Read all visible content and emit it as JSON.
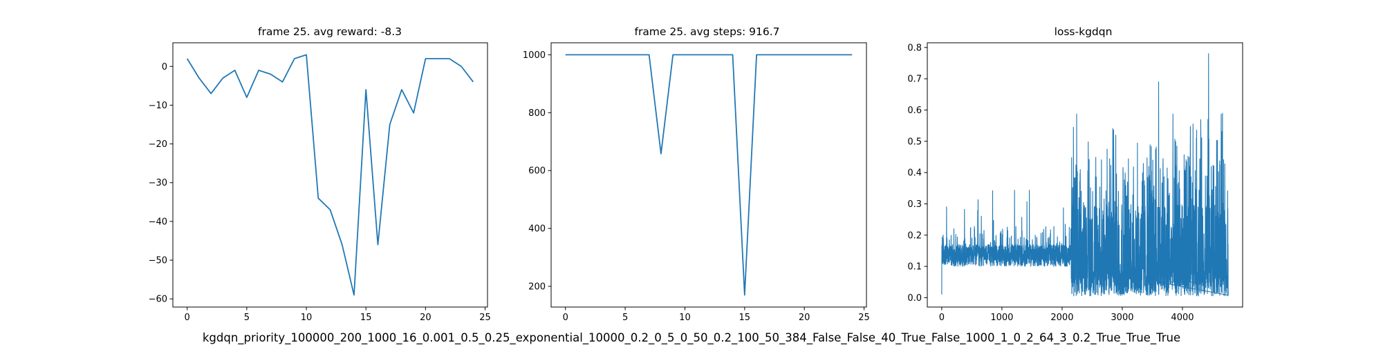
{
  "figure": {
    "caption": "kgdqn_priority_100000_200_1000_16_0.001_0.5_0.25_exponential_10000_0.2_0_5_0_50_0.2_100_50_384_False_False_40_True_False_1000_1_0_2_64_3_0.2_True_True_True"
  },
  "style": {
    "line_color": "#1f77b4",
    "frame_color": "#000000",
    "background": "#ffffff"
  },
  "chart_data": [
    {
      "type": "line",
      "title": "frame 25. avg reward: -8.3",
      "xlabel": "",
      "ylabel": "",
      "xlim": [
        -1.2,
        25.2
      ],
      "ylim": [
        -62.1,
        6.1
      ],
      "xticks": [
        0,
        5,
        10,
        15,
        20,
        25
      ],
      "yticks": [
        0,
        -10,
        -20,
        -30,
        -40,
        -50,
        -60
      ],
      "grid": false,
      "series": [
        {
          "x": [
            0,
            1,
            2,
            3,
            4,
            5,
            6,
            7,
            8,
            9,
            10,
            11,
            12,
            13,
            14,
            15,
            16,
            17,
            18,
            19,
            20,
            21,
            22,
            23,
            24
          ],
          "y": [
            2,
            -3,
            -7,
            -3,
            -1,
            -8,
            -1,
            -2,
            -4,
            2,
            3,
            -34,
            -37,
            -46,
            -59,
            -6,
            -46,
            -15,
            -6,
            -12,
            2,
            2,
            2,
            0,
            -4
          ]
        }
      ]
    },
    {
      "type": "line",
      "title": "frame 25. avg steps: 916.7",
      "xlabel": "",
      "ylabel": "",
      "xlim": [
        -1.2,
        25.2
      ],
      "ylim": [
        128.5,
        1041.5
      ],
      "xticks": [
        0,
        5,
        10,
        15,
        20,
        25
      ],
      "yticks": [
        200,
        400,
        600,
        800,
        1000
      ],
      "grid": false,
      "series": [
        {
          "x": [
            0,
            1,
            2,
            3,
            4,
            5,
            6,
            7,
            8,
            9,
            10,
            11,
            12,
            13,
            14,
            15,
            16,
            17,
            18,
            19,
            20,
            21,
            22,
            23,
            24
          ],
          "y": [
            1000,
            1000,
            1000,
            1000,
            1000,
            1000,
            1000,
            1000,
            658,
            1000,
            1000,
            1000,
            1000,
            1000,
            1000,
            170,
            1000,
            1000,
            1000,
            1000,
            1000,
            1000,
            1000,
            1000,
            1000
          ]
        }
      ]
    },
    {
      "type": "line",
      "title": "loss-kgdqn",
      "xlabel": "",
      "ylabel": "",
      "xlim": [
        -240,
        5000
      ],
      "ylim": [
        -0.03,
        0.815
      ],
      "xticks": [
        0,
        1000,
        2000,
        3000,
        4000
      ],
      "yticks": [
        0.0,
        0.1,
        0.2,
        0.3,
        0.4,
        0.5,
        0.6,
        0.7,
        0.8
      ],
      "grid": false,
      "series": [
        {
          "x_range": [
            0,
            4760
          ],
          "segments": [
            {
              "x_range": [
                0,
                2150
              ],
              "baseline_band": [
                0.09,
                0.19
              ],
              "peaks": [
                0.3,
                0.36
              ]
            },
            {
              "x_range": [
                2150,
                4760
              ],
              "baseline_band": [
                0.0,
                0.45
              ],
              "peaks": [
                0.55,
                0.77
              ]
            }
          ],
          "notable_points": [
            {
              "x": 0,
              "y": 0.01
            },
            {
              "x": 3600,
              "y": 0.69
            },
            {
              "x": 4430,
              "y": 0.78
            }
          ]
        }
      ]
    }
  ]
}
